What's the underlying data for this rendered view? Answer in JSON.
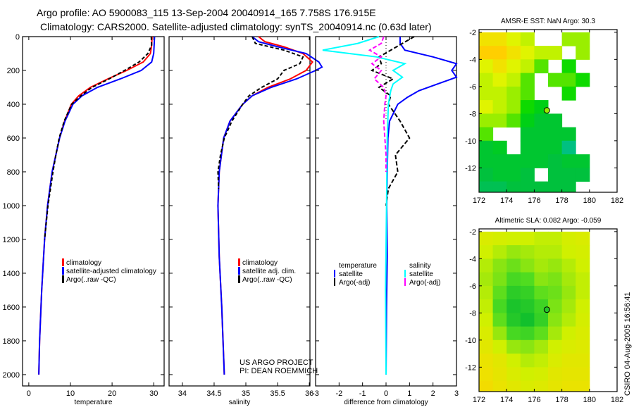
{
  "title_line1": "Argo profile: AO 5900083_115 13-Sep-2004 20040914_165 7.758S 176.915E",
  "title_line2": "Climatology: CARS2000. Satellite-adjusted climatology: synTS_20040914.nc (0.63d later)",
  "footer_project": "US ARGO PROJECT",
  "footer_pi": "PI: DEAN ROEMMICH",
  "timestamp": "CSIRO 04-Aug-2005 16:56:41",
  "colors": {
    "climatology": "#ff0000",
    "satellite": "#0000ff",
    "argo": "#000000",
    "sal_satellite": "#00ffff",
    "sal_argo": "#ff00ff"
  },
  "chart_data": [
    {
      "type": "line",
      "title": "",
      "xlabel": "temperature",
      "ylabel": "",
      "xlim": [
        -1.5,
        32.5
      ],
      "ylim": [
        0,
        2067
      ],
      "y_inverted": true,
      "xticks": [
        "0",
        "10",
        "20",
        "30"
      ],
      "xtick_values": [
        0,
        10,
        20,
        30
      ],
      "yticks": [
        "0",
        "200",
        "400",
        "600",
        "800",
        "1000",
        "1200",
        "1400",
        "1600",
        "1800",
        "2000"
      ],
      "ytick_values": [
        0,
        200,
        400,
        600,
        800,
        1000,
        1200,
        1400,
        1600,
        1800,
        2000
      ],
      "legend": {
        "placement": "lower-right",
        "entries": [
          "climatology",
          "satellite-adjusted climatology",
          "Argo(..raw -QC)"
        ]
      },
      "series": [
        {
          "name": "climatology",
          "color": "#ff0000",
          "dash": "",
          "depth": [
            0,
            50,
            100,
            150,
            200,
            250,
            300,
            350,
            400,
            500,
            600,
            800,
            1000,
            1200,
            1500,
            1800,
            2000
          ],
          "values": [
            29.6,
            29.5,
            29.2,
            27.5,
            23.5,
            19,
            14.8,
            12,
            10.2,
            8.6,
            7.4,
            5.6,
            4.5,
            3.8,
            3.1,
            2.6,
            2.4
          ]
        },
        {
          "name": "satellite-adjusted climatology",
          "color": "#0000ff",
          "dash": "",
          "depth": [
            0,
            50,
            100,
            150,
            200,
            250,
            300,
            350,
            400,
            500,
            600,
            800,
            1000,
            1200,
            1500,
            1800,
            2000
          ],
          "values": [
            30.2,
            30.1,
            30,
            29.5,
            27,
            22,
            16.5,
            12.8,
            10.6,
            8.7,
            7.4,
            5.6,
            4.5,
            3.8,
            3.1,
            2.6,
            2.4
          ]
        },
        {
          "name": "Argo(..raw -QC)",
          "color": "#000000",
          "dash": "5,3",
          "depth": [
            0,
            50,
            100,
            150,
            200,
            250,
            300,
            350,
            400,
            500,
            600,
            700,
            800,
            1000,
            1200
          ],
          "values": [
            29.4,
            29.5,
            28.6,
            26.5,
            23,
            19.3,
            15.2,
            12.5,
            10.3,
            8.5,
            7.3,
            6.5,
            5.8,
            4.6,
            3.8
          ]
        }
      ]
    },
    {
      "type": "line",
      "title": "",
      "xlabel": "salinity",
      "ylabel": "",
      "xlim": [
        33.79,
        36.01
      ],
      "ylim": [
        0,
        2067
      ],
      "y_inverted": true,
      "xticks": [
        "34",
        "34.5",
        "35",
        "35.5",
        "36"
      ],
      "xtick_values": [
        34,
        34.5,
        35,
        35.5,
        36
      ],
      "legend": {
        "placement": "lower-right",
        "entries": [
          "climatology",
          "satellite adj. clim.",
          "Argo(..raw -QC)"
        ]
      },
      "series": [
        {
          "name": "climatology",
          "color": "#ff0000",
          "dash": "",
          "depth": [
            0,
            30,
            60,
            100,
            150,
            200,
            250,
            300,
            350,
            400,
            500,
            600,
            800,
            1000,
            1300,
            1600,
            2000
          ],
          "values": [
            35.2,
            35.3,
            35.6,
            35.9,
            36.05,
            35.95,
            35.7,
            35.35,
            35.1,
            34.95,
            34.75,
            34.65,
            34.58,
            34.56,
            34.58,
            34.62,
            34.66
          ]
        },
        {
          "name": "satellite adj. clim.",
          "color": "#0000ff",
          "dash": "",
          "depth": [
            0,
            30,
            60,
            100,
            150,
            180,
            200,
            250,
            300,
            350,
            400,
            500,
            600,
            800,
            1000,
            1300,
            1600,
            2000
          ],
          "values": [
            35.1,
            35.2,
            35.5,
            35.95,
            36.15,
            36.2,
            36.1,
            35.8,
            35.4,
            35.1,
            34.95,
            34.75,
            34.65,
            34.58,
            34.56,
            34.58,
            34.62,
            34.66
          ]
        },
        {
          "name": "Argo(..raw -QC)",
          "color": "#000000",
          "dash": "5,3",
          "depth": [
            0,
            40,
            80,
            120,
            160,
            200,
            250,
            300,
            350,
            400,
            500,
            600,
            700,
            800,
            900
          ],
          "values": [
            35.1,
            35.15,
            35.6,
            35.9,
            35.85,
            35.6,
            35.5,
            35.25,
            35.05,
            34.95,
            34.78,
            34.66,
            34.6,
            34.56,
            34.57
          ]
        }
      ]
    },
    {
      "type": "line",
      "title": "",
      "xlabel": "difference from climatology",
      "ylabel": "",
      "xlim": [
        -3,
        3
      ],
      "ylim": [
        0,
        2067
      ],
      "y_inverted": true,
      "xticks": [
        "-3",
        "-2",
        "-1",
        "0",
        "1",
        "2",
        "3"
      ],
      "xtick_values": [
        -3,
        -2,
        -1,
        0,
        1,
        2,
        3
      ],
      "legend": {
        "placement": "lower-center",
        "temperature_header": "temperature",
        "salinity_header": "salinity",
        "entries": [
          "satellite",
          "Argo(-adj)",
          "satellite",
          "Argo(-adj)"
        ]
      },
      "series": [
        {
          "name": "temperature satellite",
          "color": "#0000ff",
          "dash": "",
          "depth": [
            0,
            40,
            80,
            120,
            160,
            200,
            240,
            280,
            320,
            360,
            400,
            500,
            600,
            800,
            1000,
            1300,
            1600,
            2000
          ],
          "values": [
            0.6,
            0.6,
            0.8,
            2.0,
            3.0,
            2.8,
            3.0,
            2.2,
            1.4,
            0.9,
            0.5,
            0.15,
            0.08,
            0.05,
            0.03,
            0.05,
            0.02,
            0.0
          ]
        },
        {
          "name": "temperature Argo(-adj)",
          "color": "#000000",
          "dash": "6,3",
          "depth": [
            0,
            40,
            80,
            120,
            160,
            200,
            250,
            300,
            350,
            400,
            500,
            600,
            700,
            800,
            900,
            1000
          ],
          "values": [
            1.2,
            0.7,
            0.2,
            -0.3,
            -0.2,
            -0.6,
            0.3,
            -0.3,
            0.2,
            0.1,
            0.6,
            1.0,
            0.4,
            0.5,
            0.1,
            0.0
          ]
        },
        {
          "name": "salinity satellite",
          "color": "#00ffff",
          "dash": "",
          "depth": [
            0,
            40,
            80,
            120,
            160,
            200,
            240,
            280,
            320,
            400,
            600,
            1000,
            1500,
            2000
          ],
          "values": [
            -0.3,
            -1.2,
            -2.7,
            -0.4,
            0.8,
            0.3,
            0.7,
            0.3,
            0.2,
            0.1,
            0.05,
            0.02,
            -0.02,
            0.0
          ]
        },
        {
          "name": "salinity Argo(-adj)",
          "color": "#ff00ff",
          "dash": "6,3",
          "depth": [
            0,
            40,
            80,
            120,
            160,
            200,
            250,
            300,
            350,
            400,
            500,
            600,
            700,
            800
          ],
          "values": [
            -0.1,
            -0.2,
            -0.7,
            -0.2,
            -0.6,
            -0.2,
            -0.5,
            -0.1,
            0.0,
            -0.05,
            -0.1,
            -0.05,
            0.0,
            0.0
          ]
        }
      ]
    },
    {
      "type": "heatmap",
      "title": "AMSR-E SST: NaN Argo: 30.3",
      "xlim": [
        172,
        182
      ],
      "ylim": [
        -13.8,
        -1.8
      ],
      "xticks": [
        "172",
        "174",
        "176",
        "178",
        "180",
        "182"
      ],
      "xtick_values": [
        172,
        174,
        176,
        178,
        180,
        182
      ],
      "yticks": [
        "-2",
        "-4",
        "-6",
        "-8",
        "-10",
        "-12"
      ],
      "ytick_values": [
        -2,
        -4,
        -6,
        -8,
        -10,
        -12
      ],
      "lon0": 172,
      "lat0": -2,
      "cell_deg": 1,
      "vrange": [
        29.6,
        30.8
      ],
      "argo_point": {
        "lon": 176.915,
        "lat": -7.758,
        "value": 30.3
      },
      "grid": [
        [
          30.6,
          30.6,
          30.5,
          30.4,
          null,
          null,
          30.3,
          30.3
        ],
        [
          30.7,
          30.7,
          30.6,
          30.5,
          30.4,
          30.4,
          null,
          30.3
        ],
        [
          30.5,
          30.6,
          30.5,
          30.4,
          30.2,
          null,
          30.1,
          null
        ],
        [
          30.4,
          30.5,
          30.4,
          30.2,
          null,
          30.2,
          30.2,
          30.1
        ],
        [
          30.4,
          30.4,
          30.3,
          30.2,
          null,
          null,
          30.1,
          null
        ],
        [
          30.5,
          30.4,
          30.3,
          30.1,
          30.0,
          null,
          null,
          null
        ],
        [
          30.3,
          30.3,
          30.2,
          30.0,
          29.9,
          29.9,
          null,
          null
        ],
        [
          30.2,
          null,
          null,
          29.9,
          29.9,
          29.9,
          29.9,
          null
        ],
        [
          29.9,
          29.95,
          null,
          29.9,
          29.9,
          29.9,
          29.7,
          null
        ],
        [
          29.9,
          29.9,
          29.9,
          29.9,
          29.9,
          29.85,
          29.9,
          29.9
        ],
        [
          29.85,
          29.9,
          29.9,
          29.85,
          null,
          29.85,
          29.85,
          29.85
        ],
        [
          29.8,
          29.8,
          29.85,
          29.85,
          29.85,
          29.85,
          29.85,
          null
        ]
      ]
    },
    {
      "type": "heatmap",
      "title": "Altimetric SLA: 0.082 Argo: -0.059",
      "xlim": [
        172,
        182
      ],
      "ylim": [
        -13.8,
        -1.8
      ],
      "xticks": [
        "172",
        "174",
        "176",
        "178",
        "180",
        "182"
      ],
      "xtick_values": [
        172,
        174,
        176,
        178,
        180,
        182
      ],
      "yticks": [
        "-2",
        "-4",
        "-6",
        "-8",
        "-10",
        "-12"
      ],
      "ytick_values": [
        -2,
        -4,
        -6,
        -8,
        -10,
        -12
      ],
      "lon0": 172,
      "lat0": -2,
      "cell_deg": 1,
      "vrange": [
        -0.1,
        0.2
      ],
      "argo_point": {
        "lon": 176.915,
        "lat": -7.758,
        "value": -0.059
      },
      "grid": [
        [
          0.1,
          0.09,
          0.08,
          0.08,
          0.07,
          0.07,
          0.09,
          0.1
        ],
        [
          0.08,
          0.06,
          0.04,
          0.05,
          0.06,
          0.06,
          0.08,
          0.09
        ],
        [
          0.06,
          0.03,
          0.01,
          0.03,
          0.05,
          0.04,
          0.06,
          0.08
        ],
        [
          0.05,
          0.02,
          -0.02,
          -0.01,
          0.03,
          0.02,
          0.05,
          0.07
        ],
        [
          0.06,
          0.0,
          -0.05,
          -0.04,
          0.0,
          0.01,
          0.04,
          0.07
        ],
        [
          0.07,
          -0.02,
          -0.07,
          -0.06,
          -0.03,
          0.02,
          0.05,
          0.08
        ],
        [
          0.08,
          0.0,
          -0.06,
          -0.08,
          -0.04,
          0.03,
          0.06,
          0.09
        ],
        [
          0.1,
          0.04,
          -0.02,
          -0.03,
          0.0,
          0.05,
          0.08,
          0.1
        ],
        [
          0.12,
          0.08,
          0.04,
          0.03,
          0.05,
          0.08,
          0.1,
          0.11
        ],
        [
          0.14,
          0.12,
          0.08,
          0.06,
          0.07,
          0.1,
          0.12,
          0.12
        ],
        [
          0.15,
          0.13,
          0.1,
          0.08,
          0.09,
          0.12,
          0.13,
          0.13
        ],
        [
          0.16,
          0.14,
          0.12,
          0.1,
          0.11,
          0.13,
          0.14,
          0.14
        ]
      ]
    }
  ]
}
